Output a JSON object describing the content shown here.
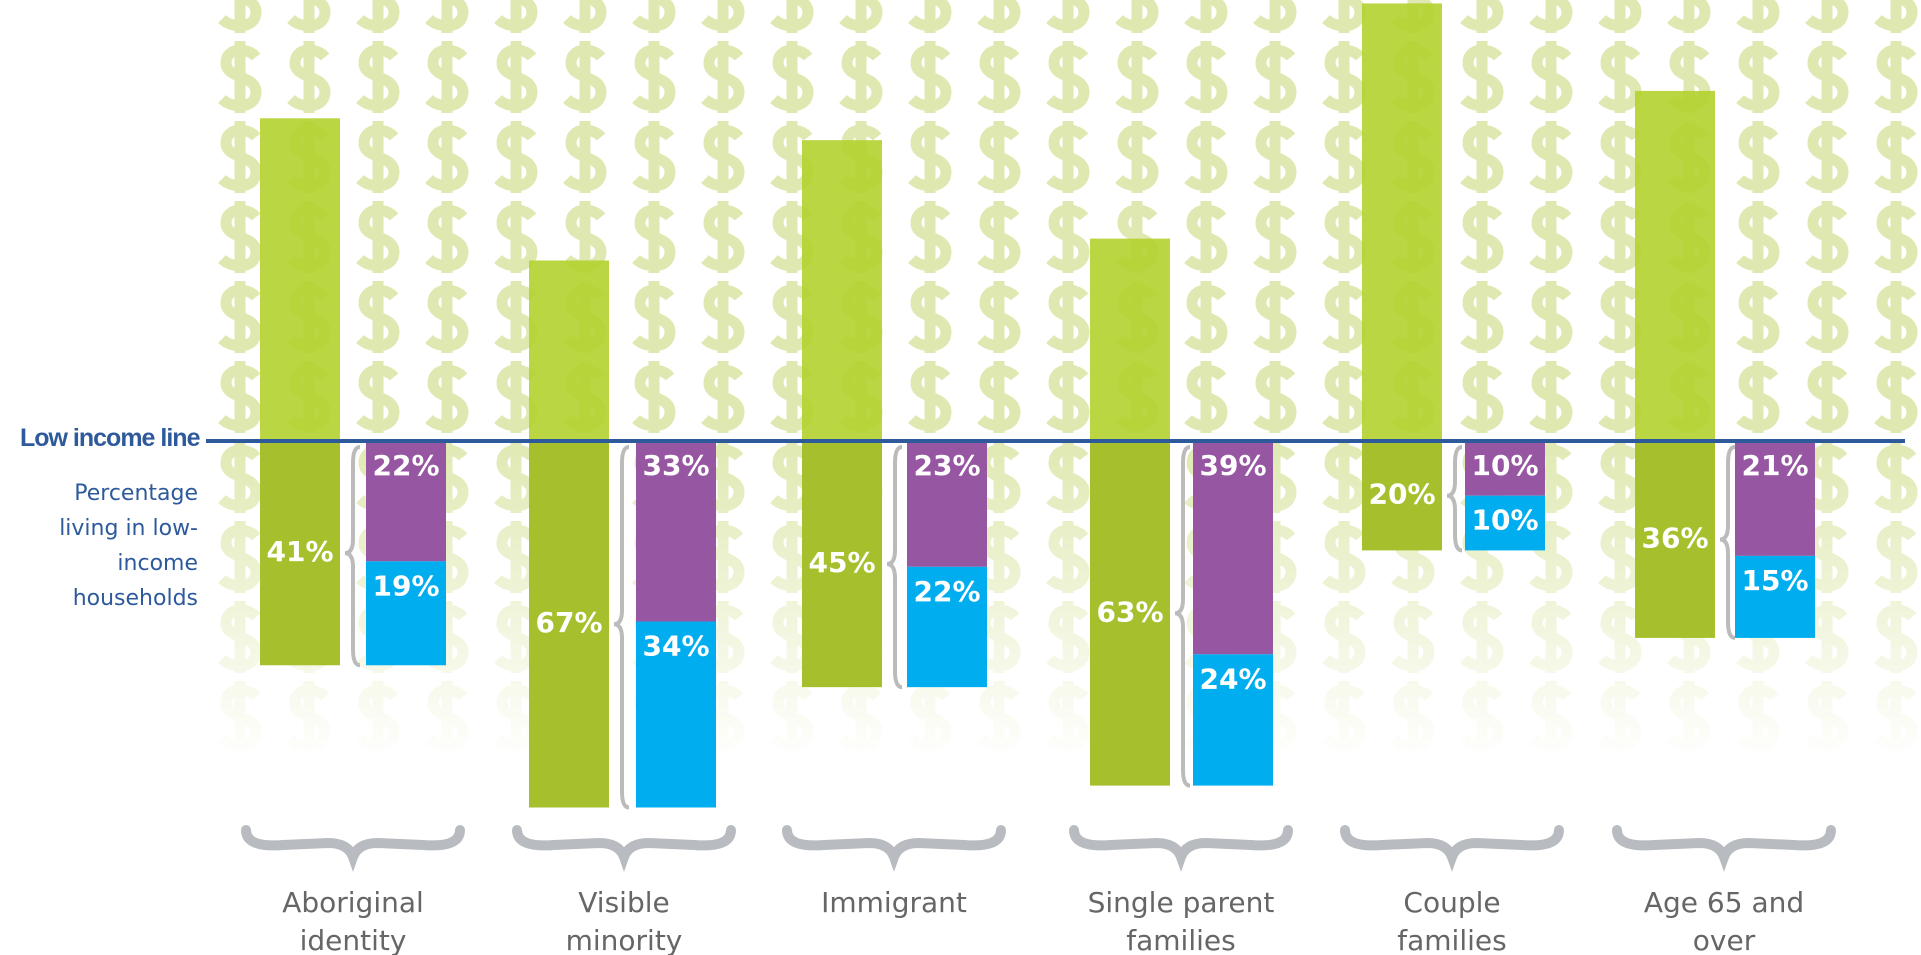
{
  "chart_data": {
    "type": "bar",
    "reference_line_label": "Low income line",
    "annotation": "Percentage living in low-income households",
    "categories": [
      "Aboriginal identity",
      "Visible minority",
      "Immigrant",
      "Single parent families",
      "Couple families",
      "Age 65 and over"
    ],
    "ylim": [
      0,
      100
    ],
    "series": [
      {
        "color": "#a5c02c",
        "values": [
          41,
          67,
          45,
          63,
          20,
          36
        ],
        "value_labels": [
          "41%",
          "67%",
          "45%",
          "63%",
          "20%",
          "36%"
        ]
      },
      {
        "color": "#9656a2",
        "values": [
          22,
          33,
          23,
          39,
          10,
          21
        ],
        "value_labels": [
          "22%",
          "33%",
          "23%",
          "39%",
          "10%",
          "21%"
        ]
      },
      {
        "color": "#00aeef",
        "values": [
          19,
          34,
          22,
          24,
          10,
          15
        ],
        "value_labels": [
          "19%",
          "34%",
          "22%",
          "24%",
          "10%",
          "15%"
        ]
      }
    ]
  }
}
